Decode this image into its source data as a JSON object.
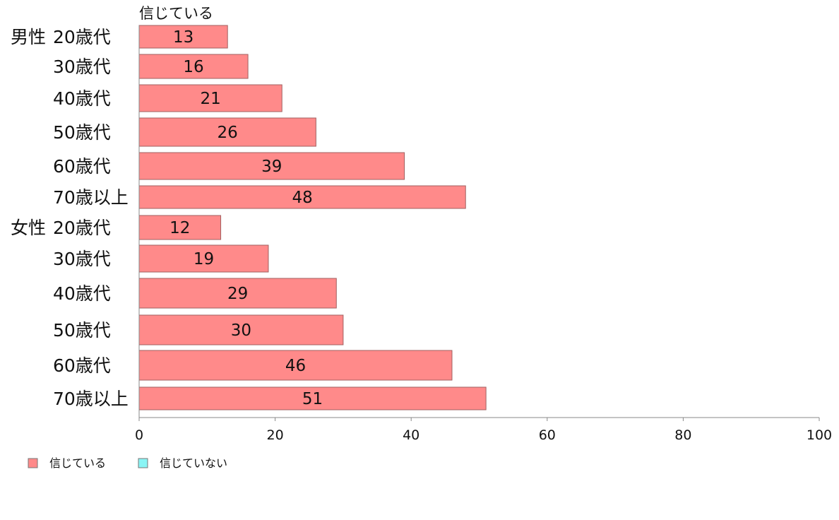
{
  "chart_data": {
    "type": "bar",
    "orientation": "horizontal",
    "series_title": "信じている",
    "groups": [
      {
        "label": "男性",
        "start": 0
      },
      {
        "label": "女性",
        "start": 6
      }
    ],
    "categories": [
      "20歳代",
      "30歳代",
      "40歳代",
      "50歳代",
      "60歳代",
      "70歳以上",
      "20歳代",
      "30歳代",
      "40歳代",
      "50歳代",
      "60歳代",
      "70歳以上"
    ],
    "series": [
      {
        "name": "信じている",
        "values": [
          13,
          16,
          21,
          26,
          39,
          48,
          12,
          19,
          29,
          30,
          46,
          51
        ]
      }
    ],
    "xlim": [
      0,
      100
    ],
    "xticks": [
      0,
      20,
      40,
      60,
      80,
      100
    ],
    "grid": false,
    "legend": {
      "placement": "bottom-left",
      "items": [
        {
          "label": "信じている",
          "color": "#ff8a8a"
        },
        {
          "label": "信じていない",
          "color": "#8af5f5"
        }
      ]
    },
    "bar_color": "#ff8a8a",
    "bar_edge": "#a06060"
  }
}
